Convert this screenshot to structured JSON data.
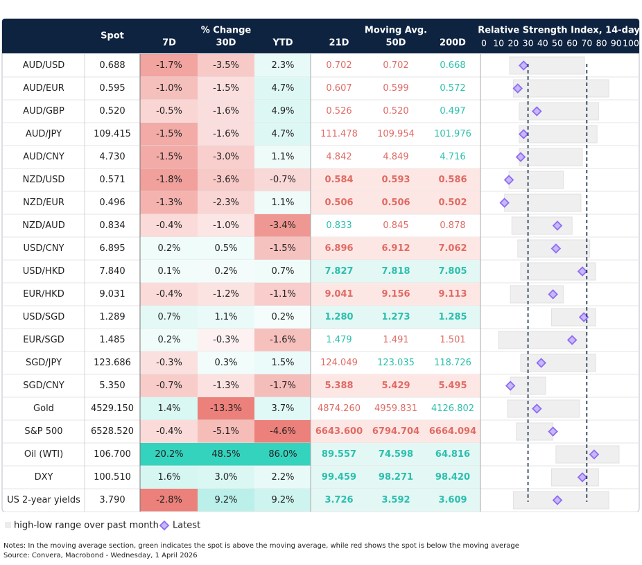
{
  "header": {
    "spot": "Spot",
    "change": "% Change",
    "change_cols": [
      "7D",
      "30D",
      "YTD"
    ],
    "ma": "Moving Avg.",
    "ma_cols": [
      "21D",
      "50D",
      "200D"
    ],
    "rsi": "Relative Strength Index, 14-day"
  },
  "rsi_axis": {
    "xlim": [
      0,
      100
    ],
    "xticks": [
      0,
      10,
      20,
      30,
      40,
      50,
      60,
      70,
      80,
      90,
      100
    ],
    "thresholds": [
      30,
      70
    ]
  },
  "table": {
    "rows": [
      {
        "cells": [
          "AUD/USD",
          "0.688",
          "-1.7%",
          "-3.5%",
          "2.3%",
          "0.702",
          "0.702",
          "0.668"
        ],
        "rsi": [
          17.5,
          68.4,
          27
        ]
      },
      {
        "cells": [
          "AUD/EUR",
          "0.595",
          "-1.0%",
          "-1.5%",
          "4.7%",
          "0.607",
          "0.599",
          "0.572"
        ],
        "rsi": [
          20,
          85,
          23
        ]
      },
      {
        "cells": [
          "AUD/GBP",
          "0.520",
          "-0.5%",
          "-1.6%",
          "4.9%",
          "0.526",
          "0.520",
          "0.497"
        ],
        "rsi": [
          24,
          78,
          36
        ]
      },
      {
        "cells": [
          "AUD/JPY",
          "109.415",
          "-1.5%",
          "-1.6%",
          "4.7%",
          "111.478",
          "109.954",
          "101.976"
        ],
        "rsi": [
          24,
          77,
          27
        ]
      },
      {
        "cells": [
          "AUD/CNY",
          "4.730",
          "-1.5%",
          "-3.0%",
          "1.1%",
          "4.842",
          "4.849",
          "4.716"
        ],
        "rsi": [
          24,
          67,
          25
        ]
      },
      {
        "cells": [
          "NZD/USD",
          "0.571",
          "-1.8%",
          "-3.6%",
          "-0.7%",
          "0.584",
          "0.593",
          "0.586"
        ],
        "rsi": [
          17,
          54,
          17
        ]
      },
      {
        "cells": [
          "NZD/EUR",
          "0.496",
          "-1.3%",
          "-2.3%",
          "1.1%",
          "0.506",
          "0.506",
          "0.502"
        ],
        "rsi": [
          14,
          66,
          14
        ]
      },
      {
        "cells": [
          "NZD/AUD",
          "0.834",
          "-0.4%",
          "-1.0%",
          "-3.4%",
          "0.833",
          "0.845",
          "0.878"
        ],
        "rsi": [
          19,
          60,
          50
        ]
      },
      {
        "cells": [
          "USD/CNY",
          "6.895",
          "0.2%",
          "0.5%",
          "-1.5%",
          "6.896",
          "6.912",
          "7.062"
        ],
        "rsi": [
          23,
          72,
          49
        ]
      },
      {
        "cells": [
          "USD/HKD",
          "7.840",
          "0.1%",
          "0.2%",
          "0.7%",
          "7.827",
          "7.818",
          "7.805"
        ],
        "rsi": [
          25,
          76,
          67
        ]
      },
      {
        "cells": [
          "EUR/HKD",
          "9.031",
          "-0.4%",
          "-1.2%",
          "-1.1%",
          "9.041",
          "9.156",
          "9.113"
        ],
        "rsi": [
          18,
          54,
          47
        ]
      },
      {
        "cells": [
          "USD/SGD",
          "1.289",
          "0.7%",
          "1.1%",
          "0.2%",
          "1.280",
          "1.273",
          "1.285"
        ],
        "rsi": [
          46,
          76,
          68
        ]
      },
      {
        "cells": [
          "EUR/SGD",
          "1.485",
          "0.2%",
          "-0.3%",
          "-1.6%",
          "1.479",
          "1.491",
          "1.501"
        ],
        "rsi": [
          10,
          70,
          60
        ]
      },
      {
        "cells": [
          "SGD/JPY",
          "123.686",
          "-0.3%",
          "0.3%",
          "1.5%",
          "124.049",
          "123.035",
          "118.726"
        ],
        "rsi": [
          25,
          76,
          39
        ]
      },
      {
        "cells": [
          "SGD/CNY",
          "5.350",
          "-0.7%",
          "-1.3%",
          "-1.7%",
          "5.388",
          "5.429",
          "5.495"
        ],
        "rsi": [
          18,
          42,
          18
        ]
      },
      {
        "cells": [
          "Gold",
          "4529.150",
          "1.4%",
          "-13.3%",
          "3.7%",
          "4874.260",
          "4959.831",
          "4126.802"
        ],
        "rsi": [
          16,
          65,
          36
        ]
      },
      {
        "cells": [
          "S&P 500",
          "6528.520",
          "-0.4%",
          "-5.1%",
          "-4.6%",
          "6643.600",
          "6794.704",
          "6664.094"
        ],
        "rsi": [
          22,
          47,
          47
        ]
      },
      {
        "cells": [
          "Oil (WTI)",
          "106.700",
          "20.2%",
          "48.5%",
          "86.0%",
          "89.557",
          "74.598",
          "64.816"
        ],
        "rsi": [
          49,
          92,
          75
        ]
      },
      {
        "cells": [
          "DXY",
          "100.510",
          "1.6%",
          "3.0%",
          "2.2%",
          "99.459",
          "98.271",
          "98.420"
        ],
        "rsi": [
          46,
          78,
          67
        ]
      },
      {
        "cells": [
          "US 2-year yields",
          "3.790",
          "-2.8%",
          "9.2%",
          "9.2%",
          "3.726",
          "3.592",
          "3.609"
        ],
        "rsi": [
          20,
          85,
          50
        ]
      }
    ]
  },
  "legend": {
    "range": "high-low range over past month",
    "latest": "Latest"
  },
  "notes": "Notes: In the moving average section, green indicates the spot is above the moving average, while red shows the spot is below the moving average",
  "source": "Source: Convera, Macrobond - Wednesday, 1 April 2026"
}
